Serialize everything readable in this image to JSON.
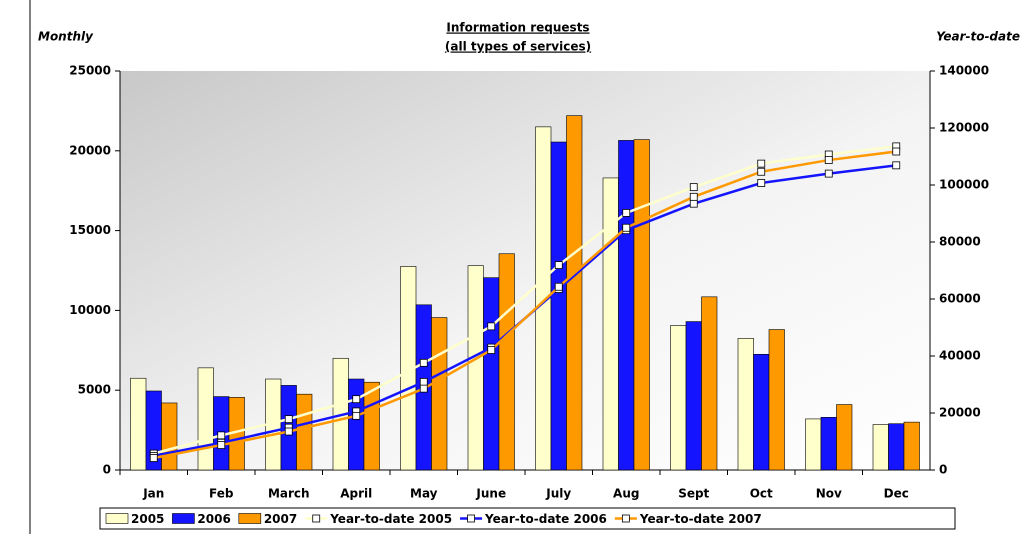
{
  "chart_data": {
    "type": "combo",
    "title": "Information requests",
    "subtitle": "(all types of services)",
    "y_label": "Monthly",
    "y2_label": "Year-to-date",
    "categories": [
      "Jan",
      "Feb",
      "March",
      "April",
      "May",
      "June",
      "July",
      "Aug",
      "Sept",
      "Oct",
      "Nov",
      "Dec"
    ],
    "ylim": [
      0,
      25000
    ],
    "yticks": [
      0,
      5000,
      10000,
      15000,
      20000,
      25000
    ],
    "y2lim": [
      0,
      140000
    ],
    "y2ticks": [
      0,
      20000,
      40000,
      60000,
      80000,
      100000,
      120000,
      140000
    ],
    "series": [
      {
        "name": "2005",
        "type": "bar",
        "color": "#ffffcc",
        "values": [
          5750,
          6400,
          5700,
          7000,
          12750,
          12800,
          21500,
          18300,
          9050,
          8250,
          3200,
          2850
        ]
      },
      {
        "name": "2006",
        "type": "bar",
        "color": "#1414ff",
        "values": [
          4950,
          4600,
          5300,
          5700,
          10350,
          12050,
          20550,
          20650,
          9300,
          7250,
          3300,
          2900
        ]
      },
      {
        "name": "2007",
        "type": "bar",
        "color": "#ff9900",
        "values": [
          4200,
          4550,
          4750,
          5500,
          9550,
          13550,
          22200,
          20700,
          10850,
          8800,
          4100,
          3000
        ]
      },
      {
        "name": "Year-to-date 2005",
        "type": "line",
        "axis": "y2",
        "color": "#ffffcc",
        "values": [
          5750,
          12150,
          17850,
          24850,
          37600,
          50400,
          71900,
          90200,
          99250,
          107500,
          110700,
          113550
        ]
      },
      {
        "name": "Year-to-date 2006",
        "type": "line",
        "axis": "y2",
        "color": "#1414ff",
        "values": [
          4950,
          9550,
          14850,
          20550,
          30900,
          42950,
          63500,
          84150,
          93450,
          100700,
          104000,
          106900
        ]
      },
      {
        "name": "Year-to-date 2007",
        "type": "line",
        "axis": "y2",
        "color": "#ff9900",
        "values": [
          4200,
          8750,
          13500,
          19000,
          28550,
          42100,
          64300,
          85000,
          95850,
          104650,
          108750,
          111750
        ]
      }
    ]
  }
}
